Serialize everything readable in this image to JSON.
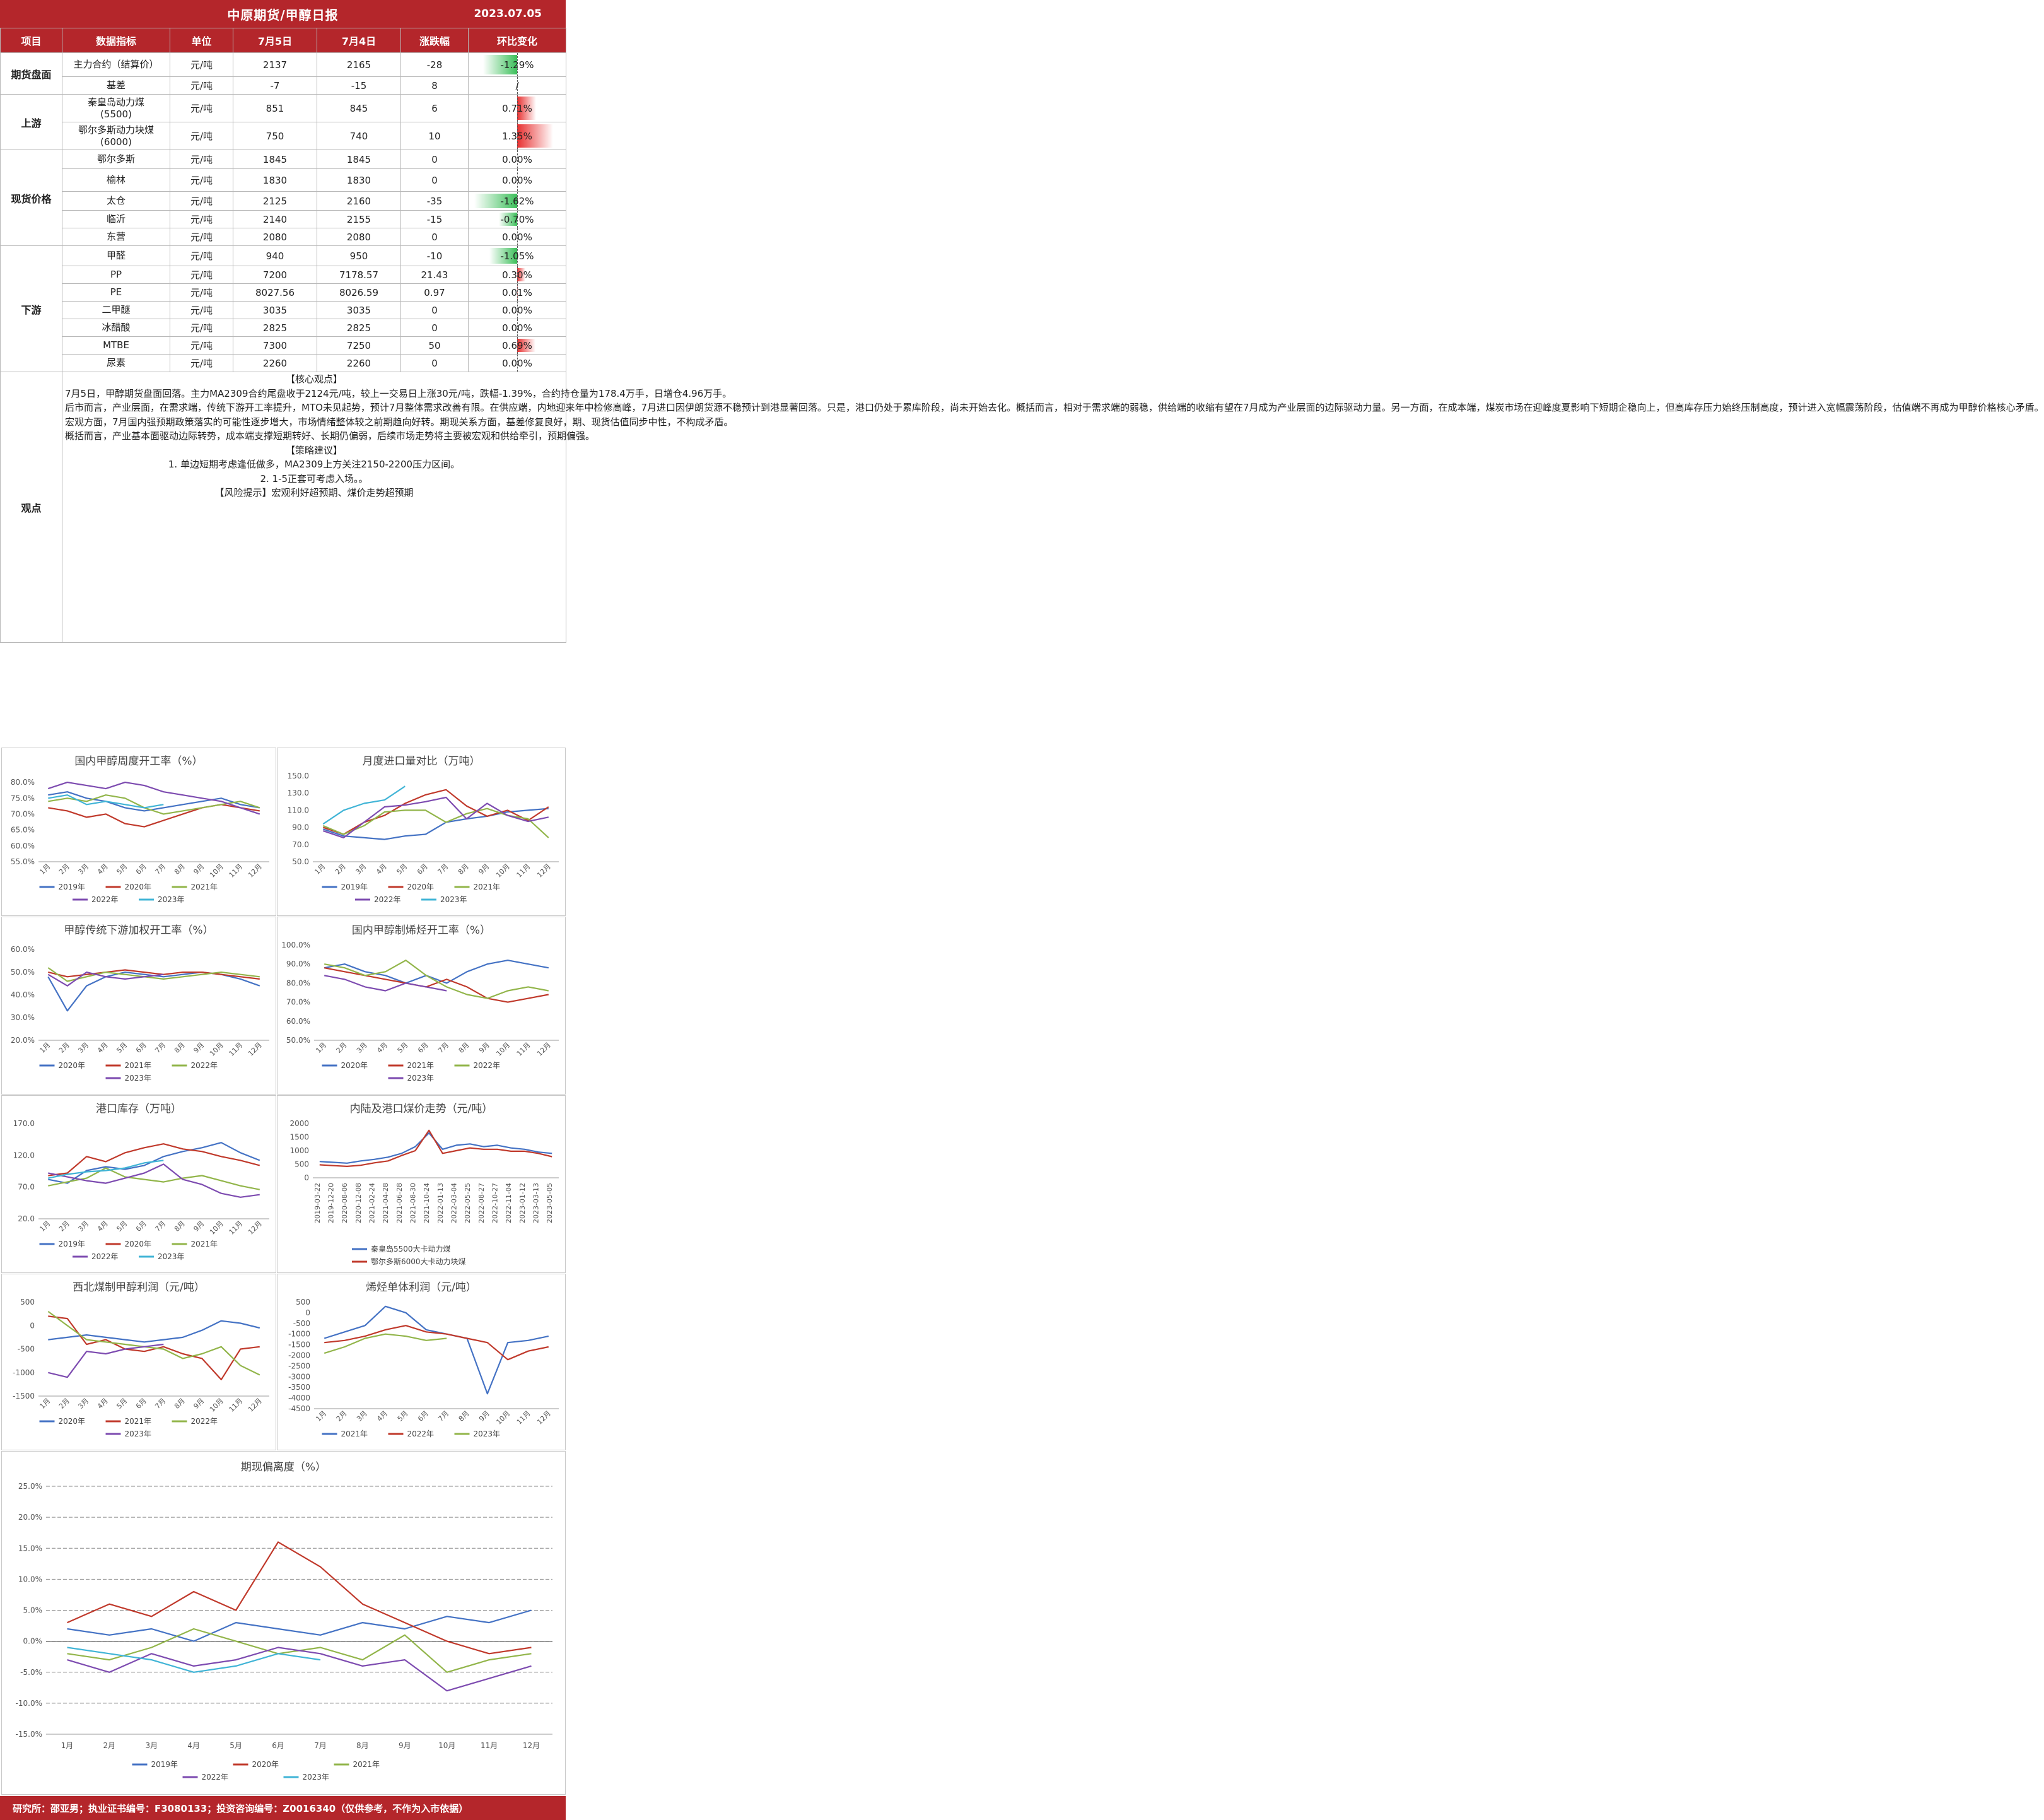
{
  "header": {
    "title": "中原期货/甲醇日报",
    "date": "2023.07.05"
  },
  "columns": [
    "项目",
    "数据指标",
    "单位",
    "7月5日",
    "7月4日",
    "涨跌幅",
    "环比变化"
  ],
  "rows": [
    {
      "section": "期货盘面",
      "span": 2,
      "name": "主力合约（结算价）",
      "unit": "元/吨",
      "d1": "2137",
      "d2": "2165",
      "chg": "-28",
      "pct": "-1.29%",
      "pctv": -1.29
    },
    {
      "name": "基差",
      "unit": "元/吨",
      "d1": "-7",
      "d2": "-15",
      "chg": "8",
      "pct": "/",
      "pctv": null
    },
    {
      "section": "上游",
      "span": 2,
      "name": "秦皇岛动力煤\n(5500)",
      "unit": "元/吨",
      "d1": "851",
      "d2": "845",
      "chg": "6",
      "pct": "0.71%",
      "pctv": 0.71
    },
    {
      "name": "鄂尔多斯动力块煤\n(6000)",
      "unit": "元/吨",
      "d1": "750",
      "d2": "740",
      "chg": "10",
      "pct": "1.35%",
      "pctv": 1.35
    },
    {
      "section": "现货价格",
      "span": 5,
      "name": "鄂尔多斯",
      "unit": "元/吨",
      "d1": "1845",
      "d2": "1845",
      "chg": "0",
      "pct": "0.00%",
      "pctv": 0
    },
    {
      "name": "榆林",
      "unit": "元/吨",
      "d1": "1830",
      "d2": "1830",
      "chg": "0",
      "pct": "0.00%",
      "pctv": 0
    },
    {
      "name": "太仓",
      "unit": "元/吨",
      "d1": "2125",
      "d2": "2160",
      "chg": "-35",
      "pct": "-1.62%",
      "pctv": -1.62
    },
    {
      "name": "临沂",
      "unit": "元/吨",
      "d1": "2140",
      "d2": "2155",
      "chg": "-15",
      "pct": "-0.70%",
      "pctv": -0.7
    },
    {
      "name": "东营",
      "unit": "元/吨",
      "d1": "2080",
      "d2": "2080",
      "chg": "0",
      "pct": "0.00%",
      "pctv": 0
    },
    {
      "section": "下游",
      "span": 7,
      "name": "甲醛",
      "unit": "元/吨",
      "d1": "940",
      "d2": "950",
      "chg": "-10",
      "pct": "-1.05%",
      "pctv": -1.05
    },
    {
      "name": "PP",
      "unit": "元/吨",
      "d1": "7200",
      "d2": "7178.57",
      "chg": "21.43",
      "pct": "0.30%",
      "pctv": 0.3
    },
    {
      "name": "PE",
      "unit": "元/吨",
      "d1": "8027.56",
      "d2": "8026.59",
      "chg": "0.97",
      "pct": "0.01%",
      "pctv": 0.01
    },
    {
      "name": "二甲醚",
      "unit": "元/吨",
      "d1": "3035",
      "d2": "3035",
      "chg": "0",
      "pct": "0.00%",
      "pctv": 0
    },
    {
      "name": "冰醋酸",
      "unit": "元/吨",
      "d1": "2825",
      "d2": "2825",
      "chg": "0",
      "pct": "0.00%",
      "pctv": 0
    },
    {
      "name": "MTBE",
      "unit": "元/吨",
      "d1": "7300",
      "d2": "7250",
      "chg": "50",
      "pct": "0.69%",
      "pctv": 0.69
    },
    {
      "name": "尿素",
      "unit": "元/吨",
      "d1": "2260",
      "d2": "2260",
      "chg": "0",
      "pct": "0.00%",
      "pctv": 0
    }
  ],
  "view": {
    "label": "观点",
    "paragraphs": [
      "【核心观点】",
      "7月5日，甲醇期货盘面回落。主力MA2309合约尾盘收于2124元/吨，较上一交易日上涨30元/吨，跌幅-1.39%，合约持仓量为178.4万手，日增仓4.96万手。",
      "后市而言，产业层面，在需求端，传统下游开工率提升，MTO未见起势，预计7月整体需求改善有限。在供应端，内地迎来年中检修高峰，7月进口因伊朗货源不稳预计到港显著回落。只是，港口仍处于累库阶段，尚未开始去化。概括而言，相对于需求端的弱稳，供给端的收缩有望在7月成为产业层面的边际驱动力量。另一方面，在成本端，煤炭市场在迎峰度夏影响下短期企稳向上，但高库存压力始终压制高度，预计进入宽幅震荡阶段，估值端不再成为甲醇价格核心矛盾。",
      "宏观方面，7月国内强预期政策落实的可能性逐步增大，市场情绪整体较之前期趋向好转。期现关系方面，基差修复良好，期、现货估值同步中性，不构成矛盾。",
      "概括而言，产业基本面驱动边际转势，成本端支撑短期转好、长期仍偏弱，后续市场走势将主要被宏观和供给牵引，预期偏强。",
      "【策略建议】",
      "1. 单边短期考虑逢低做多，MA2309上方关注2150-2200压力区间。",
      "2. 1-5正套可考虑入场。。",
      "【风险提示】宏观利好超预期、煤价走势超预期"
    ]
  },
  "chart_data": [
    {
      "type": "line",
      "title": "国内甲醇周度开工率（%）",
      "y_ticks": [
        "80.0%",
        "75.0%",
        "70.0%",
        "65.0%",
        "60.0%",
        "55.0%"
      ],
      "ylim": [
        55,
        82
      ],
      "x_ticks": [
        "1月",
        "2月",
        "3月",
        "4月",
        "5月",
        "6月",
        "7月",
        "8月",
        "9月",
        "10月",
        "11月",
        "12月"
      ],
      "series": [
        {
          "name": "2019年",
          "color": "#4472c4",
          "values": [
            76,
            77,
            75,
            74,
            72,
            71,
            72,
            73,
            74,
            75,
            73,
            72
          ]
        },
        {
          "name": "2020年",
          "color": "#c0392b",
          "values": [
            72,
            71,
            69,
            70,
            67,
            66,
            68,
            70,
            72,
            73,
            72,
            71
          ]
        },
        {
          "name": "2021年",
          "color": "#92b54a",
          "values": [
            74,
            75,
            74,
            76,
            75,
            72,
            70,
            71,
            72,
            73,
            74,
            72
          ]
        },
        {
          "name": "2022年",
          "color": "#7d4bb0",
          "values": [
            78,
            80,
            79,
            78,
            80,
            79,
            77,
            76,
            75,
            74,
            72,
            70
          ]
        },
        {
          "name": "2023年",
          "color": "#40b4d6",
          "values": [
            75,
            76,
            73,
            74,
            73,
            72,
            73
          ]
        }
      ]
    },
    {
      "type": "line",
      "title": "月度进口量对比（万吨）",
      "y_ticks": [
        "150.0",
        "130.0",
        "110.0",
        "90.0",
        "70.0",
        "50.0"
      ],
      "ylim": [
        50,
        150
      ],
      "x_ticks": [
        "1月",
        "2月",
        "3月",
        "4月",
        "5月",
        "6月",
        "7月",
        "8月",
        "9月",
        "10月",
        "11月",
        "12月"
      ],
      "series": [
        {
          "name": "2019年",
          "color": "#4472c4",
          "values": [
            88,
            80,
            78,
            76,
            80,
            82,
            96,
            100,
            103,
            108,
            110,
            112
          ]
        },
        {
          "name": "2020年",
          "color": "#c0392b",
          "values": [
            90,
            82,
            96,
            104,
            118,
            128,
            134,
            115,
            103,
            110,
            98,
            114
          ]
        },
        {
          "name": "2021年",
          "color": "#92b54a",
          "values": [
            92,
            82,
            92,
            108,
            110,
            110,
            96,
            106,
            112,
            104,
            100,
            78
          ]
        },
        {
          "name": "2022年",
          "color": "#7d4bb0",
          "values": [
            86,
            78,
            96,
            114,
            116,
            120,
            125,
            100,
            118,
            104,
            97,
            102
          ]
        },
        {
          "name": "2023年",
          "color": "#40b4d6",
          "values": [
            94,
            110,
            118,
            122,
            138
          ]
        }
      ]
    },
    {
      "type": "line",
      "title": "甲醇传统下游加权开工率（%）",
      "y_ticks": [
        "60.0%",
        "50.0%",
        "40.0%",
        "30.0%",
        "20.0%"
      ],
      "ylim": [
        20,
        62
      ],
      "x_ticks": [
        "1月",
        "2月",
        "3月",
        "4月",
        "5月",
        "6月",
        "7月",
        "8月",
        "9月",
        "10月",
        "11月",
        "12月"
      ],
      "series": [
        {
          "name": "2020年",
          "color": "#4472c4",
          "values": [
            48,
            33,
            44,
            48,
            50,
            49,
            48,
            49,
            50,
            49,
            47,
            44
          ]
        },
        {
          "name": "2021年",
          "color": "#c0392b",
          "values": [
            50,
            48,
            49,
            50,
            51,
            50,
            49,
            50,
            50,
            49,
            48,
            47
          ]
        },
        {
          "name": "2022年",
          "color": "#92b54a",
          "values": [
            52,
            46,
            48,
            50,
            49,
            48,
            47,
            48,
            49,
            50,
            49,
            48
          ]
        },
        {
          "name": "2023年",
          "color": "#7d4bb0",
          "values": [
            49,
            44,
            50,
            48,
            47,
            48,
            49
          ]
        }
      ]
    },
    {
      "type": "line",
      "title": "国内甲醇制烯烃开工率（%）",
      "y_ticks": [
        "100.0%",
        "90.0%",
        "80.0%",
        "70.0%",
        "60.0%",
        "50.0%"
      ],
      "ylim": [
        50,
        100
      ],
      "x_ticks": [
        "1月",
        "2月",
        "3月",
        "4月",
        "5月",
        "6月",
        "7月",
        "8月",
        "9月",
        "10月",
        "11月",
        "12月"
      ],
      "series": [
        {
          "name": "2020年",
          "color": "#4472c4",
          "values": [
            88,
            90,
            86,
            84,
            80,
            84,
            80,
            86,
            90,
            92,
            90,
            88
          ]
        },
        {
          "name": "2021年",
          "color": "#c0392b",
          "values": [
            88,
            86,
            84,
            82,
            80,
            78,
            82,
            78,
            72,
            70,
            72,
            74
          ]
        },
        {
          "name": "2022年",
          "color": "#92b54a",
          "values": [
            90,
            88,
            84,
            86,
            92,
            84,
            78,
            74,
            72,
            76,
            78,
            76
          ]
        },
        {
          "name": "2023年",
          "color": "#7d4bb0",
          "values": [
            84,
            82,
            78,
            76,
            80,
            78,
            76
          ]
        }
      ]
    },
    {
      "type": "line",
      "title": "港口库存（万吨）",
      "y_ticks": [
        "170.0",
        "120.0",
        "70.0",
        "20.0"
      ],
      "ylim": [
        20,
        170
      ],
      "x_ticks": [
        "1月",
        "2月",
        "3月",
        "4月",
        "5月",
        "6月",
        "7月",
        "8月",
        "9月",
        "10月",
        "11月",
        "12月"
      ],
      "series": [
        {
          "name": "2019年",
          "color": "#4472c4",
          "values": [
            82,
            76,
            96,
            102,
            98,
            104,
            118,
            126,
            132,
            140,
            124,
            112
          ]
        },
        {
          "name": "2020年",
          "color": "#c0392b",
          "values": [
            88,
            92,
            118,
            110,
            124,
            132,
            138,
            130,
            126,
            118,
            112,
            104
          ]
        },
        {
          "name": "2021年",
          "color": "#92b54a",
          "values": [
            72,
            78,
            84,
            100,
            86,
            82,
            78,
            84,
            88,
            80,
            72,
            66
          ]
        },
        {
          "name": "2022年",
          "color": "#7d4bb0",
          "values": [
            92,
            86,
            80,
            76,
            84,
            92,
            106,
            82,
            74,
            60,
            54,
            58
          ]
        },
        {
          "name": "2023年",
          "color": "#40b4d6",
          "values": [
            84,
            90,
            94,
            96,
            100,
            108,
            112
          ]
        }
      ]
    },
    {
      "type": "line",
      "title": "内陆及港口煤价走势（元/吨）",
      "y_ticks": [
        "2000",
        "1500",
        "1000",
        "500",
        "0"
      ],
      "ylim": [
        0,
        2000
      ],
      "x_ticks": [
        "2019-03-22",
        "2019-12-20",
        "2020-08-06",
        "2020-12-08",
        "2021-02-24",
        "2021-04-28",
        "2021-06-28",
        "2021-08-30",
        "2021-10-24",
        "2022-01-13",
        "2022-03-04",
        "2022-05-25",
        "2022-08-27",
        "2022-10-27",
        "2022-11-04",
        "2023-01-12",
        "2023-03-13",
        "2023-05-05"
      ],
      "series": [
        {
          "name": "秦皇岛5500大卡动力煤",
          "color": "#4472c4",
          "values": [
            600,
            570,
            540,
            620,
            680,
            760,
            900,
            1150,
            1650,
            1050,
            1200,
            1250,
            1150,
            1200,
            1100,
            1050,
            950,
            900
          ]
        },
        {
          "name": "鄂尔多斯6000大卡动力块煤",
          "color": "#c0392b",
          "values": [
            480,
            450,
            420,
            460,
            550,
            620,
            820,
            1000,
            1750,
            900,
            1000,
            1100,
            1050,
            1050,
            980,
            980,
            900,
            780
          ]
        }
      ]
    },
    {
      "type": "line",
      "title": "西北煤制甲醇利润（元/吨）",
      "y_ticks": [
        "500",
        "0",
        "-500",
        "-1000",
        "-1500"
      ],
      "ylim": [
        -1500,
        500
      ],
      "x_ticks": [
        "1月",
        "2月",
        "3月",
        "4月",
        "5月",
        "6月",
        "7月",
        "8月",
        "9月",
        "10月",
        "11月",
        "12月"
      ],
      "series": [
        {
          "name": "2020年",
          "color": "#4472c4",
          "values": [
            -300,
            -250,
            -200,
            -250,
            -300,
            -350,
            -300,
            -250,
            -100,
            100,
            50,
            -50
          ]
        },
        {
          "name": "2021年",
          "color": "#c0392b",
          "values": [
            200,
            150,
            -400,
            -300,
            -500,
            -550,
            -450,
            -600,
            -700,
            -1150,
            -500,
            -450
          ]
        },
        {
          "name": "2022年",
          "color": "#92b54a",
          "values": [
            300,
            0,
            -300,
            -350,
            -400,
            -450,
            -500,
            -700,
            -600,
            -450,
            -850,
            -1050
          ]
        },
        {
          "name": "2023年",
          "color": "#7d4bb0",
          "values": [
            -1000,
            -1100,
            -550,
            -600,
            -500,
            -450,
            -400
          ]
        }
      ]
    },
    {
      "type": "line",
      "title": "烯烃单体利润（元/吨）",
      "y_ticks": [
        "500",
        "0",
        "-500",
        "-1000",
        "-1500",
        "-2000",
        "-2500",
        "-3000",
        "-3500",
        "-4000",
        "-4500"
      ],
      "ylim": [
        -4500,
        500
      ],
      "x_ticks": [
        "1月",
        "2月",
        "3月",
        "4月",
        "5月",
        "6月",
        "7月",
        "8月",
        "9月",
        "10月",
        "11月",
        "12月"
      ],
      "series": [
        {
          "name": "2021年",
          "color": "#4472c4",
          "values": [
            -1200,
            -900,
            -600,
            300,
            0,
            -800,
            -1000,
            -1200,
            -3800,
            -1400,
            -1300,
            -1100
          ]
        },
        {
          "name": "2022年",
          "color": "#c0392b",
          "values": [
            -1400,
            -1300,
            -1100,
            -800,
            -600,
            -900,
            -1000,
            -1200,
            -1400,
            -2200,
            -1800,
            -1600
          ]
        },
        {
          "name": "2023年",
          "color": "#92b54a",
          "values": [
            -1900,
            -1600,
            -1200,
            -1000,
            -1100,
            -1300,
            -1200
          ]
        }
      ]
    },
    {
      "type": "line",
      "title": "期现偏离度（%）",
      "y_ticks": [
        "25.0%",
        "20.0%",
        "15.0%",
        "10.0%",
        "5.0%",
        "0.0%",
        "-5.0%",
        "-10.0%",
        "-15.0%"
      ],
      "ylim": [
        -15,
        25
      ],
      "x_ticks": [
        "1月",
        "2月",
        "3月",
        "4月",
        "5月",
        "6月",
        "7月",
        "8月",
        "9月",
        "10月",
        "11月",
        "12月"
      ],
      "series": [
        {
          "name": "2019年",
          "color": "#4472c4",
          "values": [
            2,
            1,
            2,
            0,
            3,
            2,
            1,
            3,
            2,
            4,
            3,
            5
          ]
        },
        {
          "name": "2020年",
          "color": "#c0392b",
          "values": [
            3,
            6,
            4,
            8,
            5,
            16,
            12,
            6,
            3,
            0,
            -2,
            -1
          ]
        },
        {
          "name": "2021年",
          "color": "#92b54a",
          "values": [
            -2,
            -3,
            -1,
            2,
            0,
            -2,
            -1,
            -3,
            1,
            -5,
            -3,
            -2
          ]
        },
        {
          "name": "2022年",
          "color": "#7d4bb0",
          "values": [
            -3,
            -5,
            -2,
            -4,
            -3,
            -1,
            -2,
            -4,
            -3,
            -8,
            -6,
            -4
          ]
        },
        {
          "name": "2023年",
          "color": "#40b4d6",
          "values": [
            -1,
            -2,
            -3,
            -5,
            -4,
            -2,
            -3
          ]
        }
      ]
    }
  ],
  "footer": "研究所：邵亚男；执业证书编号：F3080133；投资咨询编号：Z0016340（仅供参考，不作为入市依据）"
}
